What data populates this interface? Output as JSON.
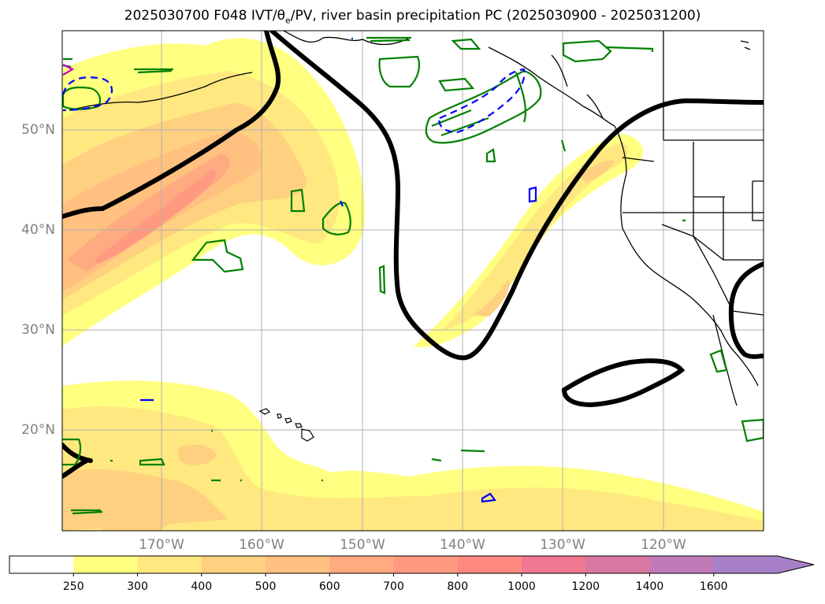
{
  "title": {
    "prefix": "2025030700 F048 IVT/",
    "theta": "θ",
    "theta_sub": "e",
    "suffix": "/PV, river basin precipitation PC (2025030900 - 2025031200)"
  },
  "map": {
    "lat_ticks": [
      "50°N",
      "40°N",
      "30°N",
      "20°N"
    ],
    "lon_ticks": [
      "170°W",
      "160°W",
      "150°W",
      "140°W",
      "130°W",
      "120°W"
    ],
    "contour_colors": {
      "pv": "#000000",
      "precip_positive": "#008000",
      "precip_negative": "#0000ff",
      "precip_extreme": "#c000c0"
    }
  },
  "colorbar": {
    "labels": [
      "250",
      "300",
      "400",
      "500",
      "600",
      "700",
      "800",
      "1000",
      "1200",
      "1400",
      "1600"
    ],
    "colors": [
      "#ffffff",
      "#ffff80",
      "#ffe880",
      "#ffd080",
      "#ffc080",
      "#ffaa80",
      "#ff9a80",
      "#ff8880",
      "#f07890",
      "#d878a0",
      "#c07ab8",
      "#a880c8"
    ]
  }
}
